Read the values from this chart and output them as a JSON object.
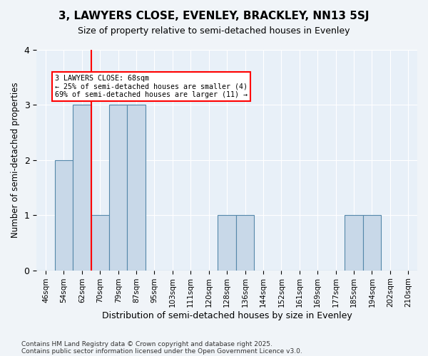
{
  "title1": "3, LAWYERS CLOSE, EVENLEY, BRACKLEY, NN13 5SJ",
  "title2": "Size of property relative to semi-detached houses in Evenley",
  "xlabel": "Distribution of semi-detached houses by size in Evenley",
  "ylabel": "Number of semi-detached properties",
  "categories": [
    "46sqm",
    "54sqm",
    "62sqm",
    "70sqm",
    "79sqm",
    "87sqm",
    "95sqm",
    "103sqm",
    "111sqm",
    "120sqm",
    "128sqm",
    "136sqm",
    "144sqm",
    "152sqm",
    "161sqm",
    "169sqm",
    "177sqm",
    "185sqm",
    "194sqm",
    "202sqm",
    "210sqm"
  ],
  "values": [
    0,
    2,
    3,
    1,
    3,
    3,
    0,
    0,
    0,
    0,
    1,
    1,
    0,
    0,
    0,
    0,
    0,
    1,
    1,
    0,
    0
  ],
  "bar_color": "#c8d8e8",
  "bar_edge_color": "#5588aa",
  "property_line_x": 2.5,
  "annotation_title": "3 LAWYERS CLOSE: 68sqm",
  "annotation_line1": "← 25% of semi-detached houses are smaller (4)",
  "annotation_line2": "69% of semi-detached houses are larger (11) →",
  "ylim": [
    0,
    4
  ],
  "yticks": [
    0,
    1,
    2,
    3,
    4
  ],
  "footnote1": "Contains HM Land Registry data © Crown copyright and database right 2025.",
  "footnote2": "Contains public sector information licensed under the Open Government Licence v3.0.",
  "background_color": "#f0f4f8",
  "plot_background_color": "#e8f0f8"
}
